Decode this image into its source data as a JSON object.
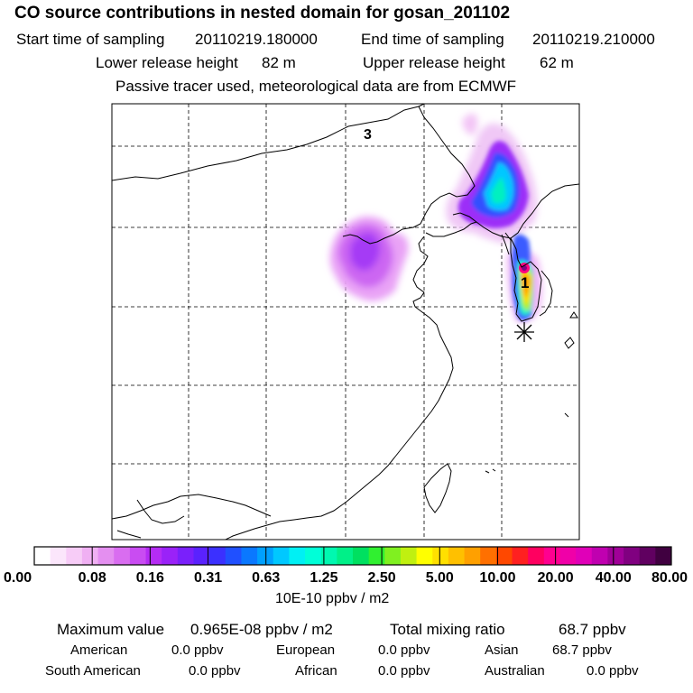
{
  "header": {
    "title": "CO  source contributions in nested domain for gosan_201102",
    "start_label": "Start time of sampling",
    "start_value": "20110219.180000",
    "end_label": "End time of sampling",
    "end_value": "20110219.210000",
    "lower_label": "Lower release height",
    "lower_value": "82 m",
    "upper_label": "Upper release height",
    "upper_value": "62 m",
    "tracer_note": "Passive tracer used, meteorological data are from ECMWF"
  },
  "chart_data": {
    "type": "heatmap",
    "title": "CO  source contributions in nested domain for gosan_201102",
    "variable": "CO source contribution",
    "colorbar": {
      "tick_labels": [
        "0.00",
        "0.08",
        "0.16",
        "0.31",
        "0.63",
        "1.25",
        "2.50",
        "5.00",
        "10.00",
        "20.00",
        "40.00",
        "80.00"
      ],
      "tick_values": [
        0.0,
        0.08,
        0.16,
        0.31,
        0.63,
        1.25,
        2.5,
        5.0,
        10.0,
        20.0,
        40.0,
        80.0
      ],
      "units": "10E-10 ppbv / m2",
      "colors": [
        "#ffffff",
        "#fbe6fb",
        "#f7ccf7",
        "#f0b0f3",
        "#e48ff0",
        "#d96df0",
        "#c94cf2",
        "#b52cf4",
        "#9a22f8",
        "#7a20fb",
        "#5a22fe",
        "#3b30ff",
        "#2050ff",
        "#0a78ff",
        "#00a0ff",
        "#00c8ff",
        "#00f0f4",
        "#00ffd8",
        "#00f8b0",
        "#00f088",
        "#00e060",
        "#30f030",
        "#80f020",
        "#c0f010",
        "#ffff00",
        "#ffe000",
        "#ffc000",
        "#ffa000",
        "#ff7000",
        "#ff4800",
        "#ff2020",
        "#ff0060",
        "#ff0090",
        "#f000a8",
        "#e000b8",
        "#c000b0",
        "#a00098",
        "#800080",
        "#600060",
        "#400040"
      ]
    },
    "marker_labels": [
      "3",
      "1"
    ]
  },
  "stats": {
    "max_label": "Maximum value",
    "max_value": "0.965E-08 ppbv / m2",
    "total_label": "Total mixing ratio",
    "total_value": "68.7 ppbv",
    "regions": [
      {
        "name": "American",
        "value": "0.0 ppbv"
      },
      {
        "name": "European",
        "value": "0.0 ppbv"
      },
      {
        "name": "Asian",
        "value": "68.7 ppbv"
      },
      {
        "name": "South American",
        "value": "0.0 ppbv"
      },
      {
        "name": "African",
        "value": "0.0 ppbv"
      },
      {
        "name": "Australian",
        "value": "0.0 ppbv"
      }
    ]
  }
}
